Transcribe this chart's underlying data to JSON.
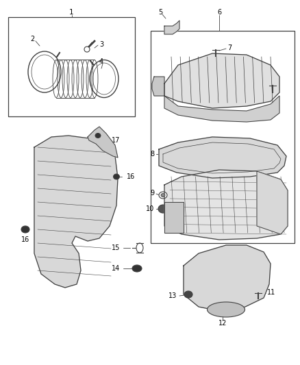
{
  "bg_color": "#ffffff",
  "line_color": "#404040",
  "fig_w": 4.38,
  "fig_h": 5.33,
  "dpi": 100
}
